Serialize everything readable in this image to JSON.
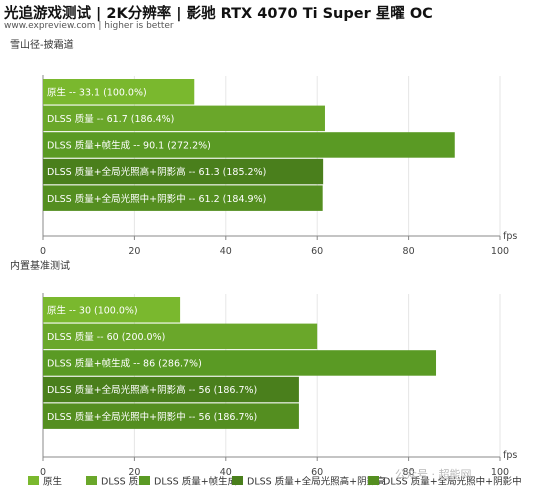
{
  "header": {
    "title": "光追游戏测试 | 2K分辨率 | 影驰 RTX 4070 Ti Super 星曜 OC",
    "subtitle": "www.expreview.com | higher is better"
  },
  "watermark": "公众号 · 超能网",
  "colors": {
    "bar_light": "#7ab82e",
    "bar_mid": "#6aa72a",
    "bar_dark_green": "#5a9a24",
    "bar_darkest": "#4a7f1c",
    "bar_dark": "#548e20",
    "axis": "#888888",
    "grid": "#e6e6e6"
  },
  "chart_data": [
    {
      "type": "bar",
      "orientation": "horizontal",
      "title": "雪山径-披霜道",
      "xlabel": "fps",
      "xlim": [
        0,
        100
      ],
      "xticks": [
        0,
        20,
        40,
        60,
        80,
        100
      ],
      "categories": [
        "原生",
        "DLSS 质量",
        "DLSS 质量+帧生成",
        "DLSS 质量+全局光照高+阴影高",
        "DLSS 质量+全局光照中+阴影中"
      ],
      "values": [
        33.1,
        61.7,
        90.1,
        61.3,
        61.2
      ],
      "percent": [
        "100.0%",
        "186.4%",
        "272.2%",
        "185.2%",
        "184.9%"
      ],
      "bar_labels": [
        "原生  --  33.1 (100.0%)",
        "DLSS 质量  --  61.7 (186.4%)",
        "DLSS 质量+帧生成  --  90.1 (272.2%)",
        "DLSS 质量+全局光照高+阴影高  --  61.3 (185.2%)",
        "DLSS 质量+全局光照中+阴影中  --  61.2 (184.9%)"
      ],
      "colors": [
        "#7ab82e",
        "#6aa72a",
        "#5a9a24",
        "#4a7f1c",
        "#548e20"
      ]
    },
    {
      "type": "bar",
      "orientation": "horizontal",
      "title": "内置基准测试",
      "xlabel": "fps",
      "xlim": [
        0,
        100
      ],
      "xticks": [
        0,
        20,
        40,
        60,
        80,
        100
      ],
      "categories": [
        "原生",
        "DLSS 质量",
        "DLSS 质量+帧生成",
        "DLSS 质量+全局光照高+阴影高",
        "DLSS 质量+全局光照中+阴影中"
      ],
      "values": [
        30,
        60,
        86,
        56,
        56
      ],
      "percent": [
        "100.0%",
        "200.0%",
        "286.7%",
        "186.7%",
        "186.7%"
      ],
      "bar_labels": [
        "原生  --  30 (100.0%)",
        "DLSS 质量  --  60 (200.0%)",
        "DLSS 质量+帧生成  --  86 (286.7%)",
        "DLSS 质量+全局光照高+阴影高  --  56 (186.7%)",
        "DLSS 质量+全局光照中+阴影中  --  56 (186.7%)"
      ],
      "colors": [
        "#7ab82e",
        "#6aa72a",
        "#5a9a24",
        "#4a7f1c",
        "#548e20"
      ]
    }
  ],
  "legend": {
    "placement": "bottom",
    "items": [
      {
        "label": "原生",
        "color": "#7ab82e"
      },
      {
        "label": "DLSS 质量",
        "color": "#6aa72a"
      },
      {
        "label": "DLSS 质量+帧生成",
        "color": "#5a9a24"
      },
      {
        "label": "DLSS 质量+全局光照高+阴影高",
        "color": "#4a7f1c"
      },
      {
        "label": "DLSS 质量+全局光照中+阴影中",
        "color": "#548e20"
      }
    ]
  }
}
